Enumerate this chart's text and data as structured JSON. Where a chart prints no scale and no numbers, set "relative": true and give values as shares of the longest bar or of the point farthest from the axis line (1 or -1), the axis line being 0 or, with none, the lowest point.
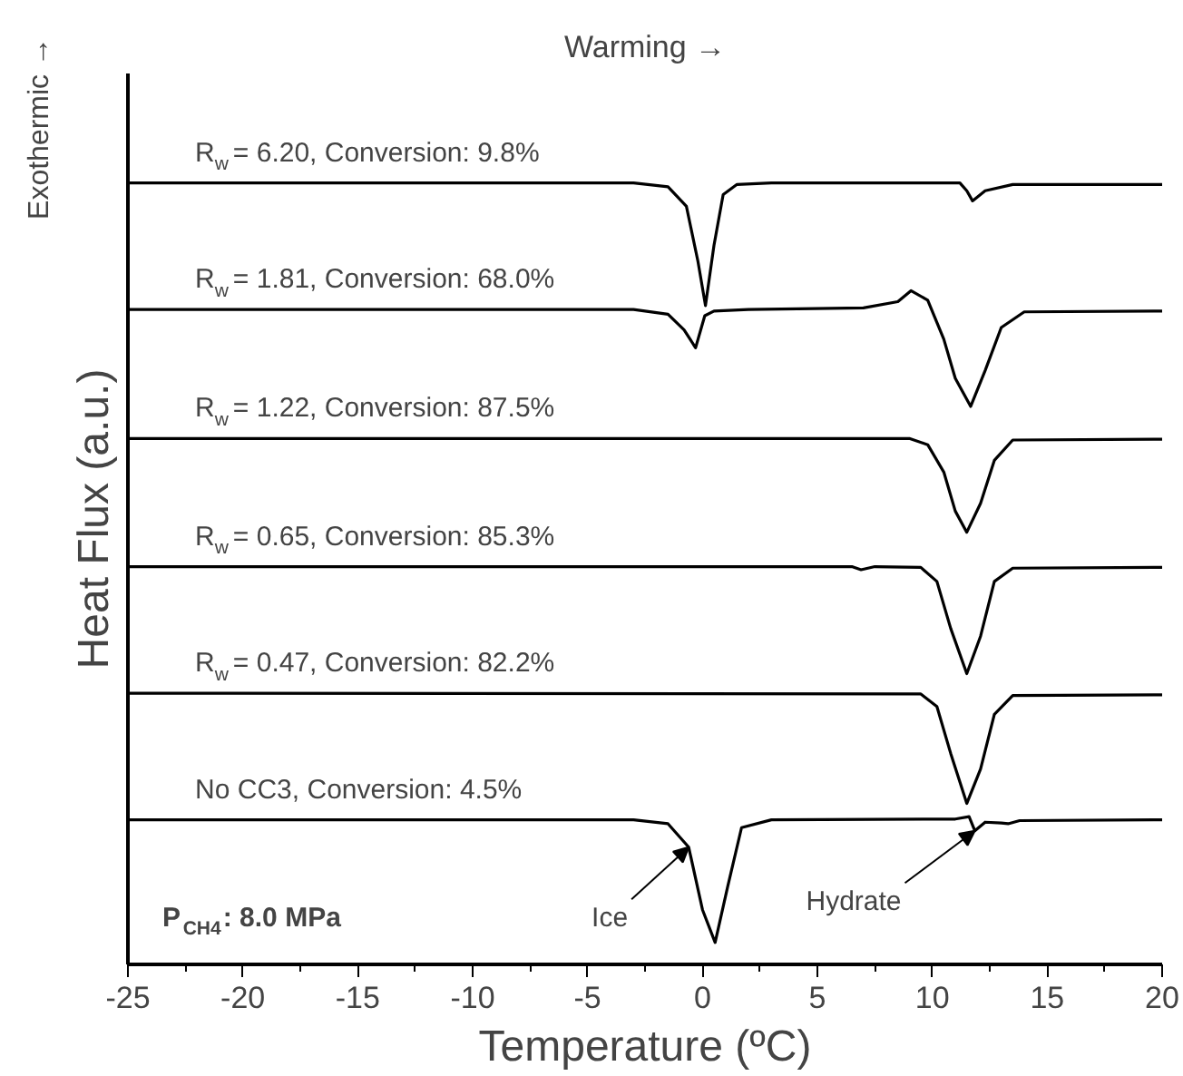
{
  "chart_data": {
    "type": "line",
    "relative": true,
    "title": "Warming →",
    "xlabel": "Temperature (ºC)",
    "ylabel": "Heat Flux (a.u.)",
    "xlim": [
      -25,
      20
    ],
    "xticks": [
      -25,
      -20,
      -15,
      -10,
      -5,
      0,
      5,
      10,
      15,
      20
    ],
    "grid": false,
    "marker": "none",
    "line_style": "solid",
    "series": [
      {
        "name": "R$_{w}$ = 6.20, Conversion: 9.8%",
        "color": "#000000",
        "x": [
          -25,
          -3,
          -1.5,
          -0.7,
          -0.2,
          0.13,
          0.5,
          0.9,
          1.5,
          3,
          10,
          11.2,
          11.5,
          11.75,
          12.3,
          13.5,
          20
        ],
        "values": [
          1,
          1,
          0.995,
          0.97,
          0.9,
          0.843,
          0.92,
          0.985,
          0.998,
          1,
          1,
          1,
          0.99,
          0.977,
          0.99,
          0.998,
          0.998
        ]
      },
      {
        "name": "R$_{w}$ = 1.81, Conversion: 68.0%",
        "color": "#000000",
        "x": [
          -25,
          -3,
          -1.5,
          -0.8,
          -0.3,
          0.1,
          0.5,
          2,
          7,
          8.5,
          9.07,
          9.8,
          10.5,
          11.0,
          11.67,
          12.3,
          13,
          14,
          20
        ],
        "values": [
          0.838,
          0.838,
          0.832,
          0.812,
          0.789,
          0.83,
          0.836,
          0.838,
          0.84,
          0.848,
          0.862,
          0.85,
          0.8,
          0.75,
          0.714,
          0.76,
          0.815,
          0.835,
          0.836
        ]
      },
      {
        "name": "R$_{w}$ = 1.22, Conversion: 87.5%",
        "color": "#000000",
        "x": [
          -25,
          9,
          9.8,
          10.5,
          11,
          11.5,
          12.1,
          12.7,
          13.5,
          20
        ],
        "values": [
          0.673,
          0.673,
          0.665,
          0.63,
          0.58,
          0.553,
          0.59,
          0.645,
          0.671,
          0.672
        ]
      },
      {
        "name": "R$_{w}$ = 0.65, Conversion: 85.3%",
        "color": "#000000",
        "x": [
          -25,
          6.5,
          6.9,
          7.5,
          9.5,
          10.2,
          10.8,
          11.5,
          12.1,
          12.7,
          13.5,
          20
        ],
        "values": [
          0.509,
          0.509,
          0.505,
          0.509,
          0.508,
          0.49,
          0.43,
          0.372,
          0.42,
          0.49,
          0.507,
          0.508
        ]
      },
      {
        "name": "R$_{w}$ = 0.47, Conversion: 82.2%",
        "color": "#000000",
        "x": [
          -25,
          9.5,
          10.2,
          10.8,
          11.5,
          12.1,
          12.7,
          13.5,
          20
        ],
        "values": [
          0.347,
          0.346,
          0.33,
          0.27,
          0.206,
          0.25,
          0.32,
          0.344,
          0.345
        ]
      },
      {
        "name": "No CC3, Conversion: 4.5%",
        "color": "#000000",
        "x": [
          -25,
          -3,
          -1.5,
          -0.6,
          0,
          0.55,
          1.1,
          1.7,
          3,
          11,
          11.6,
          11.85,
          12.3,
          13,
          13.3,
          13.8,
          20
        ],
        "values": [
          0.185,
          0.185,
          0.18,
          0.15,
          0.07,
          0.028,
          0.1,
          0.175,
          0.185,
          0.186,
          0.189,
          0.171,
          0.182,
          0.181,
          0.18,
          0.184,
          0.185
        ]
      }
    ],
    "annotations": [
      "Exothermic →",
      "P$_{CH4}$: 8.0 MPa",
      {
        "text": "Ice",
        "x": -0.6,
        "y": 0.15
      },
      {
        "text": "Hydrate",
        "x": 11.85,
        "y": 0.171
      }
    ]
  }
}
